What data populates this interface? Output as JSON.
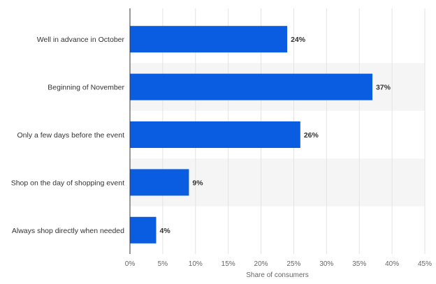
{
  "chart_data": {
    "type": "bar",
    "orientation": "horizontal",
    "categories": [
      "Well in advance in October",
      "Beginning of November",
      "Only a few days before the event",
      "Shop on the day of shopping event",
      "Always shop directly when needed"
    ],
    "values": [
      24,
      37,
      26,
      9,
      4
    ],
    "data_labels": [
      "24%",
      "37%",
      "26%",
      "9%",
      "4%"
    ],
    "xlabel": "Share of consumers",
    "ylabel": "",
    "xlim": [
      0,
      45
    ],
    "x_ticks": [
      0,
      5,
      10,
      15,
      20,
      25,
      30,
      35,
      40,
      45
    ],
    "x_tick_labels": [
      "0%",
      "5%",
      "10%",
      "15%",
      "20%",
      "25%",
      "30%",
      "35%",
      "40%",
      "45%"
    ],
    "grid": true,
    "legend": "none",
    "colors": {
      "bar": "#0a5ce0",
      "band": "#f5f5f5",
      "grid": "#e3e3e3",
      "axis": "#333333"
    }
  }
}
